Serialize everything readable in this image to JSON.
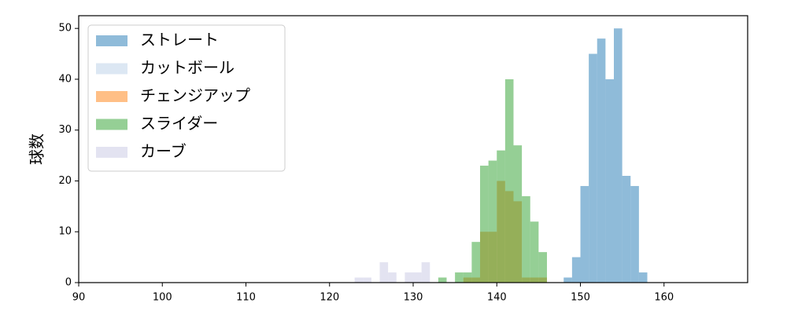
{
  "chart_data": {
    "type": "histogram",
    "y_label": "球数",
    "xlim": [
      90,
      170
    ],
    "ylim": [
      0,
      52.5
    ],
    "xticks": [
      90,
      100,
      110,
      120,
      130,
      140,
      150,
      160
    ],
    "yticks": [
      0,
      10,
      20,
      30,
      40,
      50
    ],
    "alpha": 0.5,
    "legend": "upper left",
    "series": [
      {
        "name": "ストレート",
        "color": "#1f77b4",
        "bins": [
          148,
          149,
          150,
          151,
          152,
          153,
          154,
          155,
          156,
          157,
          158
        ],
        "values": [
          1,
          5,
          19,
          45,
          48,
          40,
          50,
          21,
          19,
          2
        ]
      },
      {
        "name": "カットボール",
        "color": "#b9cfe8",
        "bins": [],
        "values": []
      },
      {
        "name": "チェンジアップ",
        "color": "#ff7f0e",
        "bins": [
          136,
          137,
          138,
          139,
          140,
          141,
          142,
          143,
          144,
          145,
          146
        ],
        "values": [
          1,
          1,
          10,
          10,
          20,
          18,
          16,
          1,
          1,
          1
        ]
      },
      {
        "name": "スライダー",
        "color": "#2ca02c",
        "bins": [
          133,
          134,
          135,
          136,
          137,
          138,
          139,
          140,
          141,
          142,
          143,
          144,
          145,
          146
        ],
        "values": [
          1,
          0,
          2,
          2,
          8,
          23,
          24,
          26,
          40,
          27,
          17,
          12,
          6
        ]
      },
      {
        "name": "カーブ",
        "color": "#c8c8e4",
        "bins": [
          123,
          124,
          125,
          126,
          127,
          128,
          129,
          130,
          131,
          132
        ],
        "values": [
          1,
          1,
          0,
          4,
          2,
          0,
          2,
          2,
          4
        ]
      }
    ]
  }
}
